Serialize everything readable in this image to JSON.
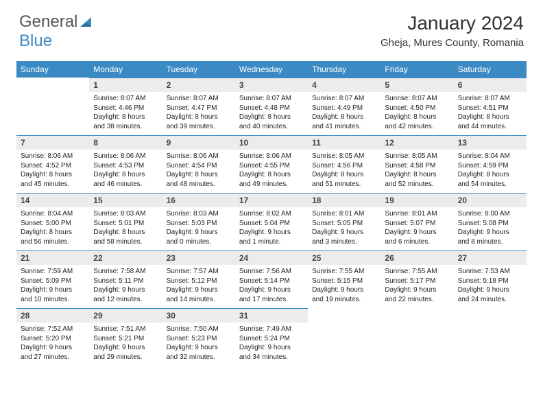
{
  "brand": {
    "part1": "General",
    "part2": "Blue"
  },
  "title": "January 2024",
  "location": "Gheja, Mures County, Romania",
  "colors": {
    "header_bg": "#3b8ac4",
    "header_text": "#ffffff",
    "daynum_bg": "#ececec",
    "border": "#3b8ac4",
    "logo_gray": "#555555",
    "logo_blue": "#3b8ac4"
  },
  "weekdays": [
    "Sunday",
    "Monday",
    "Tuesday",
    "Wednesday",
    "Thursday",
    "Friday",
    "Saturday"
  ],
  "grid": [
    [
      {
        "num": "",
        "lines": []
      },
      {
        "num": "1",
        "lines": [
          "Sunrise: 8:07 AM",
          "Sunset: 4:46 PM",
          "Daylight: 8 hours",
          "and 38 minutes."
        ]
      },
      {
        "num": "2",
        "lines": [
          "Sunrise: 8:07 AM",
          "Sunset: 4:47 PM",
          "Daylight: 8 hours",
          "and 39 minutes."
        ]
      },
      {
        "num": "3",
        "lines": [
          "Sunrise: 8:07 AM",
          "Sunset: 4:48 PM",
          "Daylight: 8 hours",
          "and 40 minutes."
        ]
      },
      {
        "num": "4",
        "lines": [
          "Sunrise: 8:07 AM",
          "Sunset: 4:49 PM",
          "Daylight: 8 hours",
          "and 41 minutes."
        ]
      },
      {
        "num": "5",
        "lines": [
          "Sunrise: 8:07 AM",
          "Sunset: 4:50 PM",
          "Daylight: 8 hours",
          "and 42 minutes."
        ]
      },
      {
        "num": "6",
        "lines": [
          "Sunrise: 8:07 AM",
          "Sunset: 4:51 PM",
          "Daylight: 8 hours",
          "and 44 minutes."
        ]
      }
    ],
    [
      {
        "num": "7",
        "lines": [
          "Sunrise: 8:06 AM",
          "Sunset: 4:52 PM",
          "Daylight: 8 hours",
          "and 45 minutes."
        ]
      },
      {
        "num": "8",
        "lines": [
          "Sunrise: 8:06 AM",
          "Sunset: 4:53 PM",
          "Daylight: 8 hours",
          "and 46 minutes."
        ]
      },
      {
        "num": "9",
        "lines": [
          "Sunrise: 8:06 AM",
          "Sunset: 4:54 PM",
          "Daylight: 8 hours",
          "and 48 minutes."
        ]
      },
      {
        "num": "10",
        "lines": [
          "Sunrise: 8:06 AM",
          "Sunset: 4:55 PM",
          "Daylight: 8 hours",
          "and 49 minutes."
        ]
      },
      {
        "num": "11",
        "lines": [
          "Sunrise: 8:05 AM",
          "Sunset: 4:56 PM",
          "Daylight: 8 hours",
          "and 51 minutes."
        ]
      },
      {
        "num": "12",
        "lines": [
          "Sunrise: 8:05 AM",
          "Sunset: 4:58 PM",
          "Daylight: 8 hours",
          "and 52 minutes."
        ]
      },
      {
        "num": "13",
        "lines": [
          "Sunrise: 8:04 AM",
          "Sunset: 4:59 PM",
          "Daylight: 8 hours",
          "and 54 minutes."
        ]
      }
    ],
    [
      {
        "num": "14",
        "lines": [
          "Sunrise: 8:04 AM",
          "Sunset: 5:00 PM",
          "Daylight: 8 hours",
          "and 56 minutes."
        ]
      },
      {
        "num": "15",
        "lines": [
          "Sunrise: 8:03 AM",
          "Sunset: 5:01 PM",
          "Daylight: 8 hours",
          "and 58 minutes."
        ]
      },
      {
        "num": "16",
        "lines": [
          "Sunrise: 8:03 AM",
          "Sunset: 5:03 PM",
          "Daylight: 9 hours",
          "and 0 minutes."
        ]
      },
      {
        "num": "17",
        "lines": [
          "Sunrise: 8:02 AM",
          "Sunset: 5:04 PM",
          "Daylight: 9 hours",
          "and 1 minute."
        ]
      },
      {
        "num": "18",
        "lines": [
          "Sunrise: 8:01 AM",
          "Sunset: 5:05 PM",
          "Daylight: 9 hours",
          "and 3 minutes."
        ]
      },
      {
        "num": "19",
        "lines": [
          "Sunrise: 8:01 AM",
          "Sunset: 5:07 PM",
          "Daylight: 9 hours",
          "and 6 minutes."
        ]
      },
      {
        "num": "20",
        "lines": [
          "Sunrise: 8:00 AM",
          "Sunset: 5:08 PM",
          "Daylight: 9 hours",
          "and 8 minutes."
        ]
      }
    ],
    [
      {
        "num": "21",
        "lines": [
          "Sunrise: 7:59 AM",
          "Sunset: 5:09 PM",
          "Daylight: 9 hours",
          "and 10 minutes."
        ]
      },
      {
        "num": "22",
        "lines": [
          "Sunrise: 7:58 AM",
          "Sunset: 5:11 PM",
          "Daylight: 9 hours",
          "and 12 minutes."
        ]
      },
      {
        "num": "23",
        "lines": [
          "Sunrise: 7:57 AM",
          "Sunset: 5:12 PM",
          "Daylight: 9 hours",
          "and 14 minutes."
        ]
      },
      {
        "num": "24",
        "lines": [
          "Sunrise: 7:56 AM",
          "Sunset: 5:14 PM",
          "Daylight: 9 hours",
          "and 17 minutes."
        ]
      },
      {
        "num": "25",
        "lines": [
          "Sunrise: 7:55 AM",
          "Sunset: 5:15 PM",
          "Daylight: 9 hours",
          "and 19 minutes."
        ]
      },
      {
        "num": "26",
        "lines": [
          "Sunrise: 7:55 AM",
          "Sunset: 5:17 PM",
          "Daylight: 9 hours",
          "and 22 minutes."
        ]
      },
      {
        "num": "27",
        "lines": [
          "Sunrise: 7:53 AM",
          "Sunset: 5:18 PM",
          "Daylight: 9 hours",
          "and 24 minutes."
        ]
      }
    ],
    [
      {
        "num": "28",
        "lines": [
          "Sunrise: 7:52 AM",
          "Sunset: 5:20 PM",
          "Daylight: 9 hours",
          "and 27 minutes."
        ]
      },
      {
        "num": "29",
        "lines": [
          "Sunrise: 7:51 AM",
          "Sunset: 5:21 PM",
          "Daylight: 9 hours",
          "and 29 minutes."
        ]
      },
      {
        "num": "30",
        "lines": [
          "Sunrise: 7:50 AM",
          "Sunset: 5:23 PM",
          "Daylight: 9 hours",
          "and 32 minutes."
        ]
      },
      {
        "num": "31",
        "lines": [
          "Sunrise: 7:49 AM",
          "Sunset: 5:24 PM",
          "Daylight: 9 hours",
          "and 34 minutes."
        ]
      },
      {
        "num": "",
        "lines": []
      },
      {
        "num": "",
        "lines": []
      },
      {
        "num": "",
        "lines": []
      }
    ]
  ]
}
